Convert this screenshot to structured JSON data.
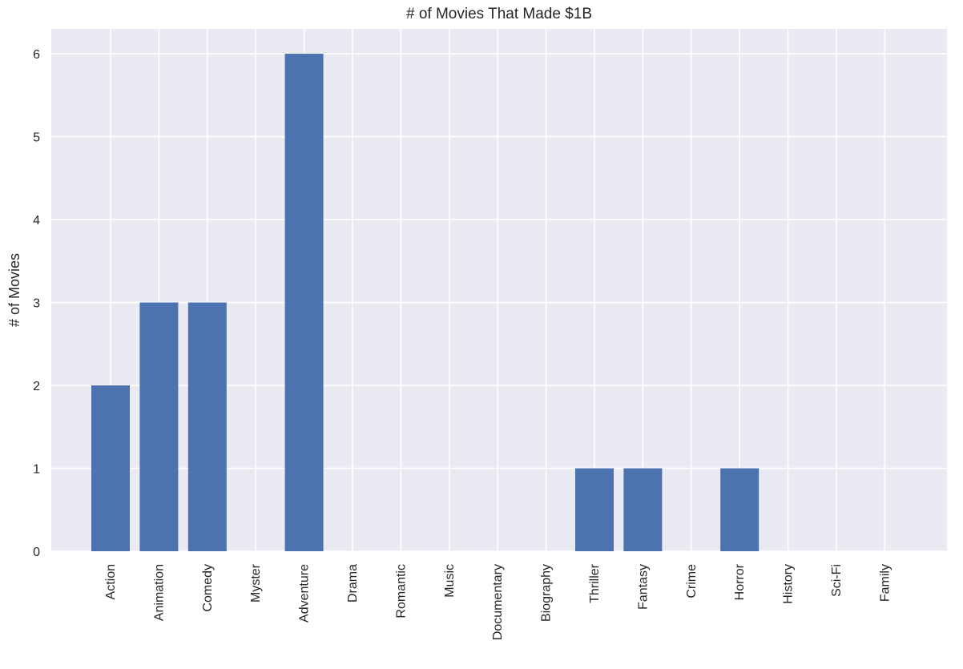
{
  "chart_data": {
    "type": "bar",
    "title": "# of Movies That Made $1B",
    "xlabel": "",
    "ylabel": "# of Movies",
    "categories": [
      "Action",
      "Animation",
      "Comedy",
      "Myster",
      "Adventure",
      "Drama",
      "Romantic",
      "Music",
      "Documentary",
      "Biography",
      "Thriller",
      "Fantasy",
      "Crime",
      "Horror",
      "History",
      "Sci-Fi",
      "Family"
    ],
    "values": [
      2,
      3,
      3,
      0,
      6,
      0,
      0,
      0,
      0,
      0,
      1,
      1,
      0,
      1,
      0,
      0,
      0
    ],
    "yticks": [
      0,
      1,
      2,
      3,
      4,
      5,
      6
    ],
    "ylim": [
      0,
      6.3
    ],
    "grid": true,
    "legend": "none",
    "colors": {
      "bar": "#4c72b0",
      "plot_background": "#eaeaf2",
      "grid": "#ffffff",
      "text": "#262626"
    }
  }
}
